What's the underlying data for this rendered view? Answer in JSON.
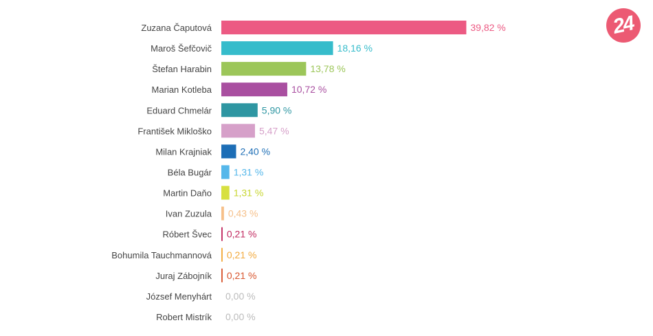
{
  "brand": {
    "logo_text": "24",
    "logo_color": "#ec5a73"
  },
  "chart_data": {
    "type": "bar",
    "orientation": "horizontal",
    "categories": [
      "Zuzana Čaputová",
      "Maroš Šefčovič",
      "Štefan Harabin",
      "Marian Kotleba",
      "Eduard Chmelár",
      "František Mikloško",
      "Milan Krajniak",
      "Béla Bugár",
      "Martin Daňo",
      "Ivan Zuzula",
      "Róbert Švec",
      "Bohumila Tauchmannová",
      "Juraj Zábojník",
      "József Menyhárt",
      "Robert Mistrík"
    ],
    "values": [
      39.82,
      18.16,
      13.78,
      10.72,
      5.9,
      5.47,
      2.4,
      1.31,
      1.31,
      0.43,
      0.21,
      0.21,
      0.21,
      0.0,
      0.0
    ],
    "value_labels": [
      "39,82 %",
      "18,16 %",
      "13,78 %",
      "10,72 %",
      "5,90 %",
      "5,47 %",
      "2,40 %",
      "1,31 %",
      "1,31 %",
      "0,43 %",
      "0,21 %",
      "0,21 %",
      "0,21 %",
      "0,00 %",
      "0,00 %"
    ],
    "colors": [
      "#ec5a83",
      "#36bccb",
      "#9cc659",
      "#a94fa0",
      "#2e96a2",
      "#d6a0c9",
      "#1d6eb6",
      "#55b7ea",
      "#d7e040",
      "#f6c08a",
      "#c1295f",
      "#f2a93b",
      "#d8552d",
      "#c8c8c8",
      "#c8c8c8"
    ],
    "label_colors": [
      "#ec5a83",
      "#36bccb",
      "#9cc659",
      "#a94fa0",
      "#2e96a2",
      "#d6a0c9",
      "#1d6eb6",
      "#55b7ea",
      "#c8d630",
      "#f6c08a",
      "#c1295f",
      "#f2a93b",
      "#d8552d",
      "#bbbbbb",
      "#bbbbbb"
    ],
    "xlim": [
      0,
      40
    ],
    "grid": false,
    "legend": "none"
  }
}
